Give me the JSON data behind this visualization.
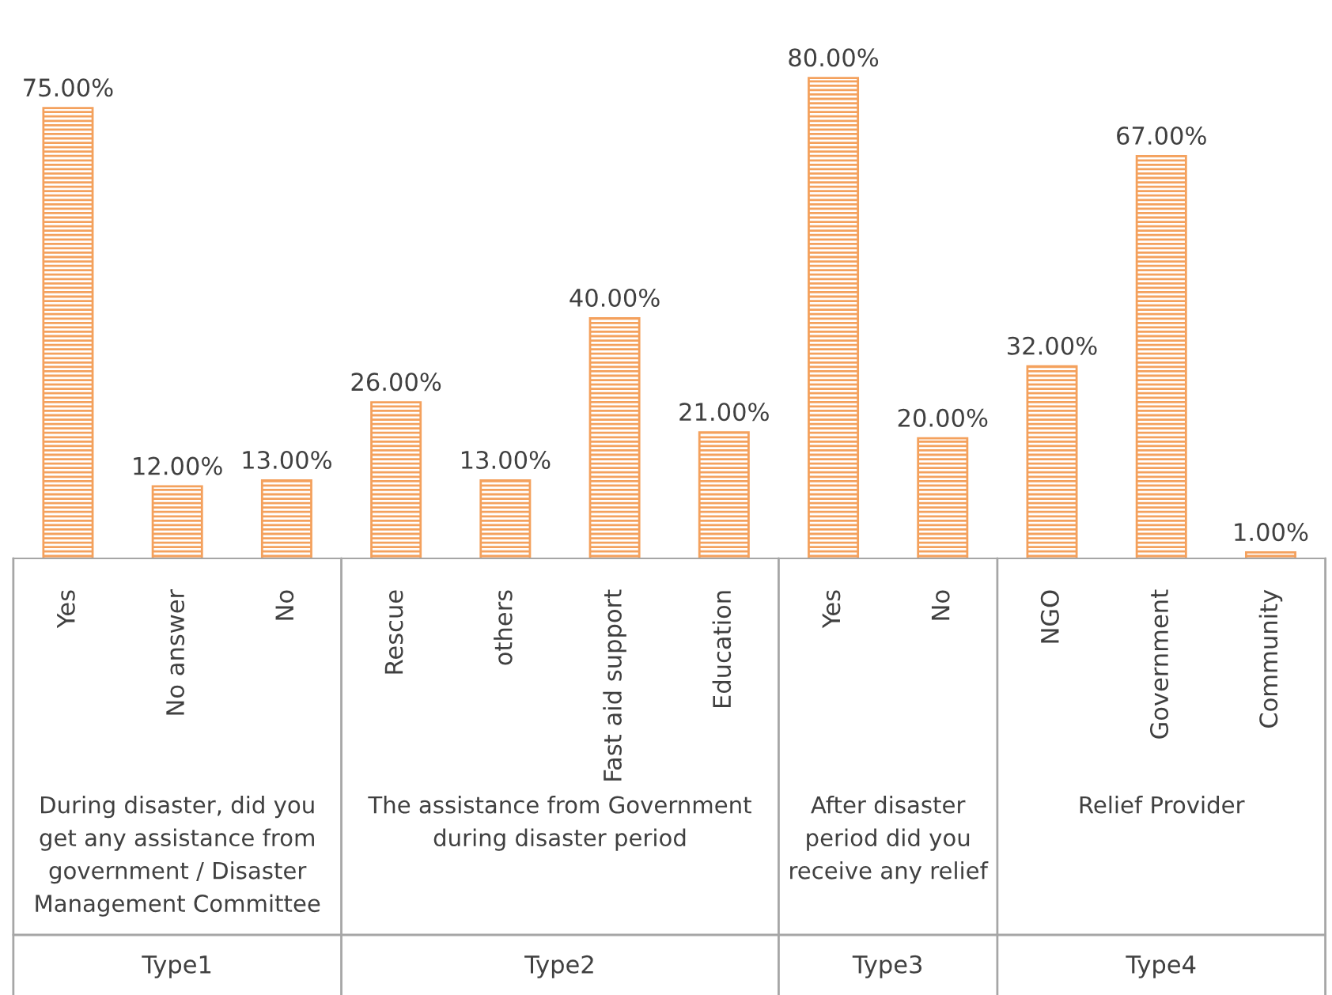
{
  "chart_data": {
    "type": "bar",
    "categories": [
      "Yes",
      "No answer",
      "No",
      "Rescue",
      "others",
      "Fast aid support",
      "Education",
      "Yes",
      "No",
      "NGO",
      "Government",
      "Community"
    ],
    "values": [
      75,
      12,
      13,
      26,
      13,
      40,
      21,
      80,
      20,
      32,
      67,
      1
    ],
    "value_labels": [
      "75.00%",
      "12.00%",
      "13.00%",
      "26.00%",
      "13.00%",
      "40.00%",
      "21.00%",
      "80.00%",
      "20.00%",
      "32.00%",
      "67.00%",
      "1.00%"
    ],
    "color": "#f4a15d",
    "annotations": [
      "During disaster, did you get any assistance from government / Disaster Management Committee",
      "The assistance from Government during disaster period",
      "After disaster period did you receive any relief",
      "Relief Provider",
      "Type1",
      "Type2",
      "Type3",
      "Type4"
    ]
  }
}
